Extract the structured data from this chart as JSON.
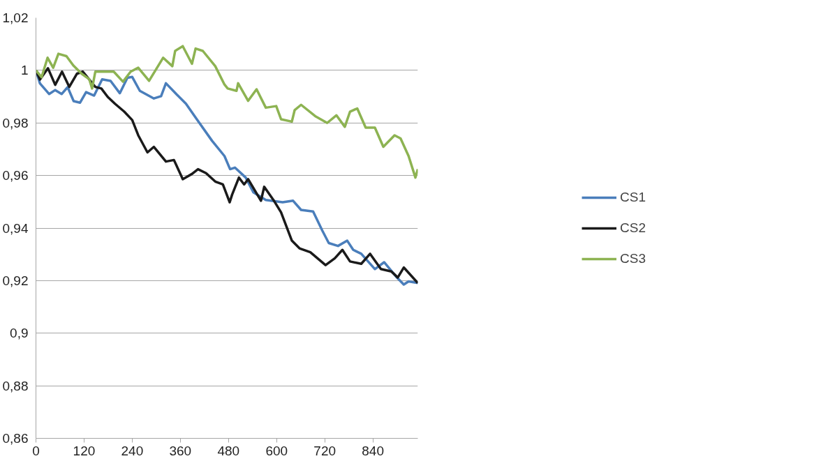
{
  "chart_data": {
    "type": "line",
    "legend": "right",
    "grid": "y",
    "marker": "none",
    "line_style": "solid",
    "xlim": [
      0,
      952
    ],
    "xticks": [
      0,
      120,
      240,
      360,
      480,
      600,
      720,
      840
    ],
    "ylim": [
      0.86,
      1.02
    ],
    "yticks": [
      {
        "value": 0.86,
        "label": "0,86"
      },
      {
        "value": 0.88,
        "label": "0,88"
      },
      {
        "value": 0.9,
        "label": "0,9"
      },
      {
        "value": 0.92,
        "label": "0,92"
      },
      {
        "value": 0.94,
        "label": "0,94"
      },
      {
        "value": 0.96,
        "label": "0,96"
      },
      {
        "value": 0.98,
        "label": "0,98"
      },
      1,
      {
        "value": 1.02,
        "label": "1,02"
      }
    ],
    "series": [
      {
        "name": "CS1",
        "color": "#4a7ebb",
        "x": [
          0,
          10,
          33,
          48,
          64,
          79,
          94,
          110,
          125,
          145,
          165,
          186,
          209,
          228,
          240,
          259,
          294,
          312,
          324,
          351,
          374,
          401,
          439,
          470,
          484,
          496,
          523,
          542,
          573,
          615,
          641,
          661,
          691,
          714,
          730,
          753,
          776,
          791,
          811,
          845,
          868,
          898,
          917,
          929,
          952
        ],
        "values": [
          1.0,
          0.995,
          0.991,
          0.9925,
          0.991,
          0.9936,
          0.9883,
          0.9877,
          0.9917,
          0.9904,
          0.9966,
          0.996,
          0.9913,
          0.9972,
          0.9975,
          0.9922,
          0.9893,
          0.9902,
          0.9951,
          0.9908,
          0.9873,
          0.9814,
          0.9732,
          0.9674,
          0.9624,
          0.963,
          0.9592,
          0.9536,
          0.9507,
          0.9498,
          0.9504,
          0.9469,
          0.9463,
          0.939,
          0.9343,
          0.9332,
          0.9352,
          0.9317,
          0.9302,
          0.9244,
          0.927,
          0.9215,
          0.9185,
          0.9197,
          0.9191
        ]
      },
      {
        "name": "CS2",
        "color": "#1a1a1a",
        "x": [
          0,
          10,
          30,
          48,
          65,
          83,
          102,
          117,
          148,
          163,
          179,
          197,
          220,
          240,
          255,
          278,
          294,
          324,
          344,
          366,
          389,
          404,
          424,
          447,
          466,
          483,
          489,
          506,
          519,
          529,
          561,
          569,
          592,
          611,
          638,
          657,
          684,
          722,
          745,
          764,
          783,
          811,
          833,
          860,
          886,
          902,
          917,
          952
        ],
        "values": [
          1.0,
          0.9965,
          1.0008,
          0.9945,
          0.9995,
          0.9937,
          0.9987,
          0.9995,
          0.9937,
          0.9931,
          0.9899,
          0.9873,
          0.9843,
          0.9811,
          0.9753,
          0.9688,
          0.9709,
          0.9653,
          0.9659,
          0.9586,
          0.9606,
          0.9624,
          0.9609,
          0.9577,
          0.9566,
          0.9498,
          0.9527,
          0.9592,
          0.9566,
          0.9586,
          0.9504,
          0.9557,
          0.9507,
          0.946,
          0.9352,
          0.9323,
          0.9308,
          0.9259,
          0.9285,
          0.9317,
          0.9273,
          0.9264,
          0.9302,
          0.9244,
          0.9235,
          0.9212,
          0.925,
          0.9191
        ]
      },
      {
        "name": "CS3",
        "color": "#8db352",
        "x": [
          0,
          14,
          29,
          43,
          56,
          76,
          93,
          114,
          133,
          140,
          148,
          194,
          217,
          236,
          255,
          282,
          317,
          340,
          347,
          366,
          389,
          398,
          416,
          447,
          470,
          478,
          500,
          504,
          529,
          550,
          573,
          599,
          611,
          638,
          645,
          661,
          696,
          726,
          749,
          770,
          783,
          801,
          822,
          845,
          866,
          894,
          909,
          929,
          946,
          952
        ],
        "values": [
          1.0,
          0.9974,
          1.0048,
          1.001,
          1.0063,
          1.0054,
          1.0019,
          0.9987,
          0.9966,
          0.9931,
          0.9995,
          0.9995,
          0.9957,
          0.9995,
          1.001,
          0.996,
          1.0048,
          1.0016,
          1.0074,
          1.0092,
          1.0025,
          1.0083,
          1.0074,
          1.0016,
          0.9946,
          0.9931,
          0.9922,
          0.9951,
          0.9884,
          0.9928,
          0.9858,
          0.9864,
          0.9814,
          0.9805,
          0.9849,
          0.9869,
          0.9826,
          0.98,
          0.9829,
          0.9785,
          0.9843,
          0.9855,
          0.9782,
          0.9782,
          0.9709,
          0.9753,
          0.9741,
          0.9674,
          0.9592,
          0.9624
        ]
      }
    ]
  }
}
